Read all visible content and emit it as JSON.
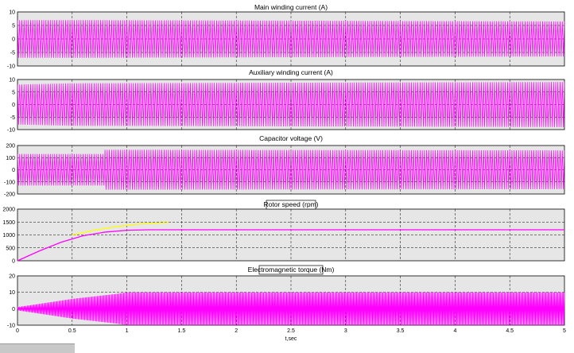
{
  "window": {
    "status_text": ""
  },
  "colors": {
    "signal": "#ff00ff",
    "reference": "#ffff00",
    "plot_bg": "#e6e6e6",
    "grid": "#000000"
  },
  "chart_data": [
    {
      "type": "line",
      "title": "Main winding current (A)",
      "xlim": [
        0,
        5
      ],
      "ylim": [
        -10,
        10
      ],
      "yticks": [
        -10,
        -5,
        0,
        5,
        10
      ],
      "grid": true,
      "series": [
        {
          "description": "sinusoid",
          "frequency_hz": 50,
          "amplitude": [
            [
              0,
              7
            ],
            [
              0.5,
              7
            ],
            [
              5,
              6.5
            ]
          ]
        }
      ]
    },
    {
      "type": "line",
      "title": "Auxiliary winding current  (A)",
      "xlim": [
        0,
        5
      ],
      "ylim": [
        -10,
        10
      ],
      "yticks": [
        -10,
        -5,
        0,
        5,
        10
      ],
      "grid": true,
      "series": [
        {
          "description": "sinusoid",
          "frequency_hz": 50,
          "amplitude": [
            [
              0,
              8
            ],
            [
              0.5,
              8.5
            ],
            [
              5,
              9
            ]
          ]
        }
      ]
    },
    {
      "type": "line",
      "title": "Capacitor voltage (V)",
      "xlim": [
        0,
        5
      ],
      "ylim": [
        -200,
        200
      ],
      "yticks": [
        -200,
        -100,
        0,
        100,
        200
      ],
      "grid": true,
      "series": [
        {
          "description": "sinusoid",
          "frequency_hz": 50,
          "amplitude": [
            [
              0,
              130
            ],
            [
              0.79,
              130
            ],
            [
              0.8,
              165
            ],
            [
              5,
              160
            ]
          ]
        }
      ]
    },
    {
      "type": "line",
      "title": "Rotor speed (rpm)",
      "xlim": [
        0,
        5
      ],
      "ylim": [
        0,
        2000
      ],
      "yticks": [
        0,
        500,
        1000,
        1500,
        2000
      ],
      "grid": true,
      "series": [
        {
          "x": [
            0,
            0.2,
            0.4,
            0.6,
            0.8,
            1.0,
            1.2,
            1.4,
            5.0
          ],
          "y": [
            0,
            380,
            720,
            970,
            1110,
            1180,
            1200,
            1200,
            1200
          ]
        },
        {
          "x": [
            0.5,
            0.7,
            0.9,
            1.1,
            1.3,
            1.38
          ],
          "y": [
            1000,
            1180,
            1320,
            1420,
            1470,
            1480
          ]
        }
      ]
    },
    {
      "type": "line",
      "title": "Electromagnetic torque (Nm)",
      "xlabel": "t,sec",
      "xlim": [
        0,
        5
      ],
      "ylim": [
        -10,
        20
      ],
      "yticks": [
        -10,
        0,
        10,
        20
      ],
      "xticks": [
        0,
        0.5,
        1,
        1.5,
        2,
        2.5,
        3,
        3.5,
        4,
        4.5,
        5
      ],
      "grid": true,
      "series": [
        {
          "description": "oscillation",
          "frequency_hz": 100,
          "mean": 0,
          "amplitude": [
            [
              0,
              1
            ],
            [
              0.5,
              6
            ],
            [
              0.9,
              9
            ],
            [
              1.0,
              10
            ],
            [
              5,
              10
            ]
          ]
        }
      ]
    }
  ]
}
